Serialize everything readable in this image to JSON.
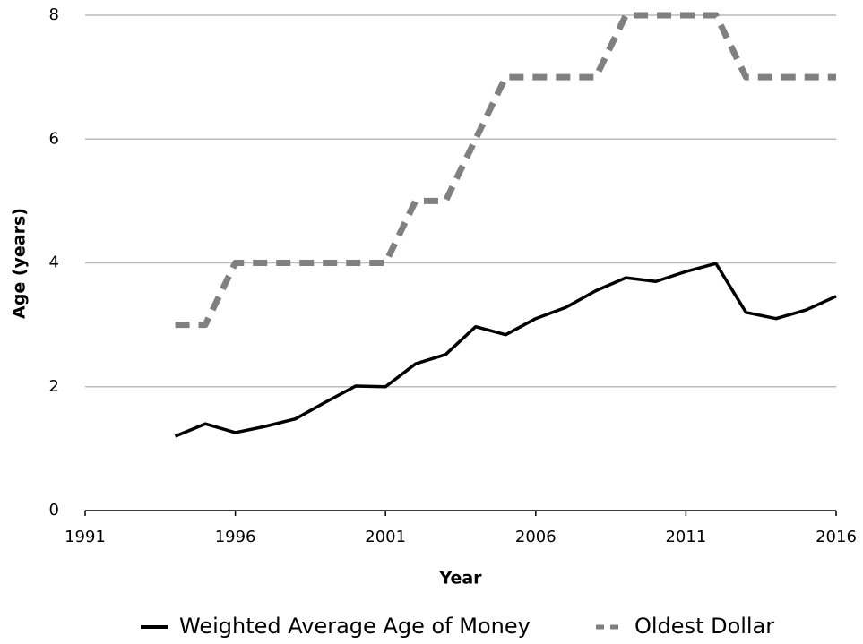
{
  "chart_data": {
    "type": "line",
    "xlabel": "Year",
    "ylabel": "Age (years)",
    "x": [
      1994,
      1995,
      1996,
      1997,
      1998,
      1999,
      2000,
      2001,
      2002,
      2003,
      2004,
      2005,
      2006,
      2007,
      2008,
      2009,
      2010,
      2011,
      2012,
      2013,
      2014,
      2015,
      2016
    ],
    "series": [
      {
        "name": "Weighted Average Age of Money",
        "color": "#000000",
        "dashed": false,
        "values": [
          1.2,
          1.4,
          1.26,
          1.36,
          1.48,
          1.75,
          2.01,
          2.0,
          2.37,
          2.52,
          2.97,
          2.84,
          3.1,
          3.28,
          3.55,
          3.76,
          3.7,
          3.86,
          3.99,
          3.2,
          3.1,
          3.24,
          3.46
        ]
      },
      {
        "name": "Oldest Dollar",
        "color": "#808080",
        "dashed": true,
        "values": [
          3,
          3,
          4,
          4,
          4,
          4,
          4,
          4,
          5,
          5,
          6,
          7,
          7,
          7,
          7,
          8,
          8,
          8,
          8,
          7,
          7,
          7,
          7
        ]
      }
    ],
    "xlim": [
      1991,
      2016
    ],
    "xticks": [
      1991,
      1996,
      2001,
      2006,
      2011,
      2016
    ],
    "ylim": [
      0,
      8
    ],
    "yticks": [
      0,
      2,
      4,
      6,
      8
    ],
    "grid": true,
    "legend": "bottom"
  }
}
